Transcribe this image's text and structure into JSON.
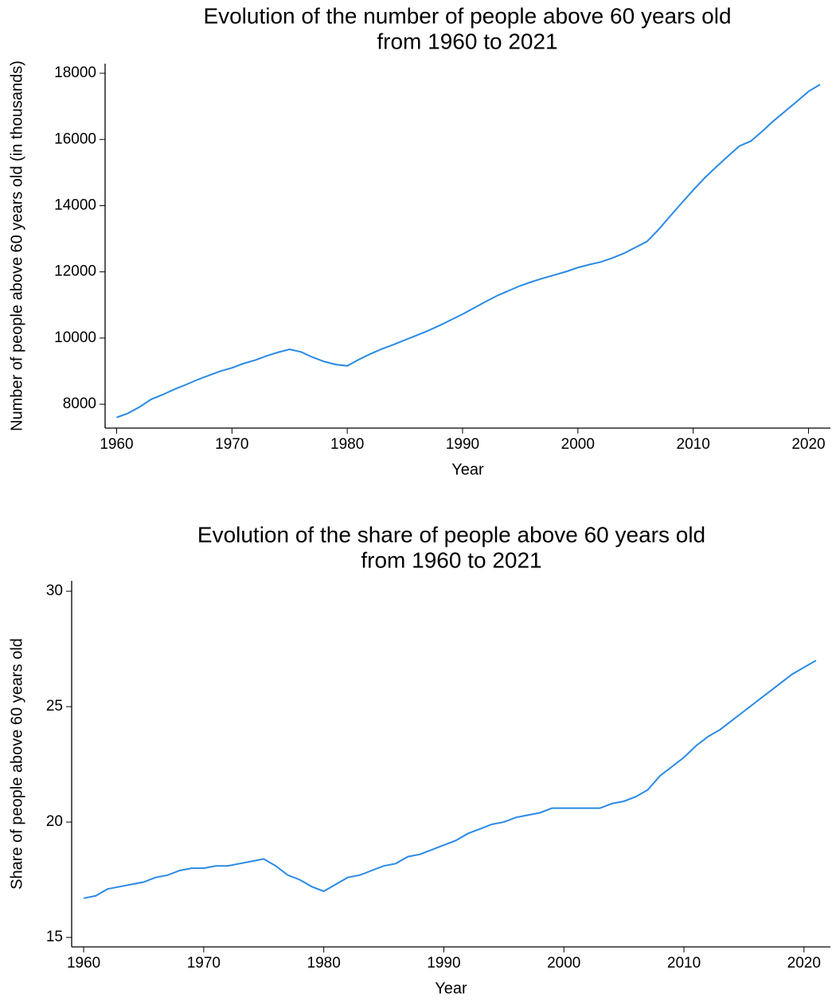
{
  "chart_data": [
    {
      "type": "line",
      "title": [
        "Evolution of the number of people above 60 years old",
        "from 1960 to 2021"
      ],
      "xlabel": "Year",
      "ylabel": "Number of people above 60 years old (in thousands)",
      "x": [
        1960,
        1961,
        1962,
        1963,
        1964,
        1965,
        1966,
        1967,
        1968,
        1969,
        1970,
        1971,
        1972,
        1973,
        1974,
        1975,
        1976,
        1977,
        1978,
        1979,
        1980,
        1981,
        1982,
        1983,
        1984,
        1985,
        1986,
        1987,
        1988,
        1989,
        1990,
        1991,
        1992,
        1993,
        1994,
        1995,
        1996,
        1997,
        1998,
        1999,
        2000,
        2001,
        2002,
        2003,
        2004,
        2005,
        2006,
        2007,
        2008,
        2009,
        2010,
        2011,
        2012,
        2013,
        2014,
        2015,
        2016,
        2017,
        2018,
        2019,
        2020,
        2021
      ],
      "series": [
        {
          "name": "Number of people above 60 years old",
          "color": "#2a8ae6",
          "values": [
            7600,
            7730,
            7920,
            8150,
            8290,
            8450,
            8590,
            8740,
            8870,
            9000,
            9100,
            9230,
            9330,
            9460,
            9570,
            9660,
            9580,
            9420,
            9290,
            9200,
            9160,
            9350,
            9520,
            9670,
            9800,
            9940,
            10080,
            10220,
            10380,
            10550,
            10720,
            10910,
            11100,
            11280,
            11430,
            11580,
            11700,
            11810,
            11910,
            12010,
            12130,
            12220,
            12300,
            12420,
            12560,
            12740,
            12920,
            13280,
            13680,
            14080,
            14470,
            14840,
            15170,
            15490,
            15800,
            15950,
            16250,
            16570,
            16860,
            17150,
            17450,
            17660
          ]
        }
      ],
      "xlim": [
        1959,
        2021.9
      ],
      "xticks": [
        1960,
        1970,
        1980,
        1990,
        2000,
        2010,
        2020
      ],
      "ylim": [
        7280,
        18290
      ],
      "yticks": [
        8000,
        10000,
        12000,
        14000,
        16000,
        18000
      ]
    },
    {
      "type": "line",
      "title": [
        "Evolution of the share of people above 60 years old",
        "from 1960 to 2021"
      ],
      "xlabel": "Year",
      "ylabel": "Share of people above 60 years old",
      "x": [
        1960,
        1961,
        1962,
        1963,
        1964,
        1965,
        1966,
        1967,
        1968,
        1969,
        1970,
        1971,
        1972,
        1973,
        1974,
        1975,
        1976,
        1977,
        1978,
        1979,
        1980,
        1981,
        1982,
        1983,
        1984,
        1985,
        1986,
        1987,
        1988,
        1989,
        1990,
        1991,
        1992,
        1993,
        1994,
        1995,
        1996,
        1997,
        1998,
        1999,
        2000,
        2001,
        2002,
        2003,
        2004,
        2005,
        2006,
        2007,
        2008,
        2009,
        2010,
        2011,
        2012,
        2013,
        2014,
        2015,
        2016,
        2017,
        2018,
        2019,
        2020,
        2021
      ],
      "series": [
        {
          "name": "Share of people above 60 years old",
          "color": "#2a8ae6",
          "values": [
            16.7,
            16.8,
            17.1,
            17.2,
            17.3,
            17.4,
            17.6,
            17.7,
            17.9,
            18.0,
            18.0,
            18.1,
            18.1,
            18.2,
            18.3,
            18.4,
            18.1,
            17.7,
            17.5,
            17.2,
            17.0,
            17.3,
            17.6,
            17.7,
            17.9,
            18.1,
            18.2,
            18.5,
            18.6,
            18.8,
            19.0,
            19.2,
            19.5,
            19.7,
            19.9,
            20.0,
            20.2,
            20.3,
            20.4,
            20.6,
            20.6,
            20.6,
            20.6,
            20.6,
            20.8,
            20.9,
            21.1,
            21.4,
            22.0,
            22.4,
            22.8,
            23.3,
            23.7,
            24.0,
            24.4,
            24.8,
            25.2,
            25.6,
            26.0,
            26.4,
            26.7,
            27.0
          ]
        }
      ],
      "xlim": [
        1959,
        2022.2
      ],
      "xticks": [
        1960,
        1970,
        1980,
        1990,
        2000,
        2010,
        2020
      ],
      "ylim": [
        14.59,
        30.45
      ],
      "yticks": [
        15,
        20,
        25,
        30
      ]
    }
  ]
}
